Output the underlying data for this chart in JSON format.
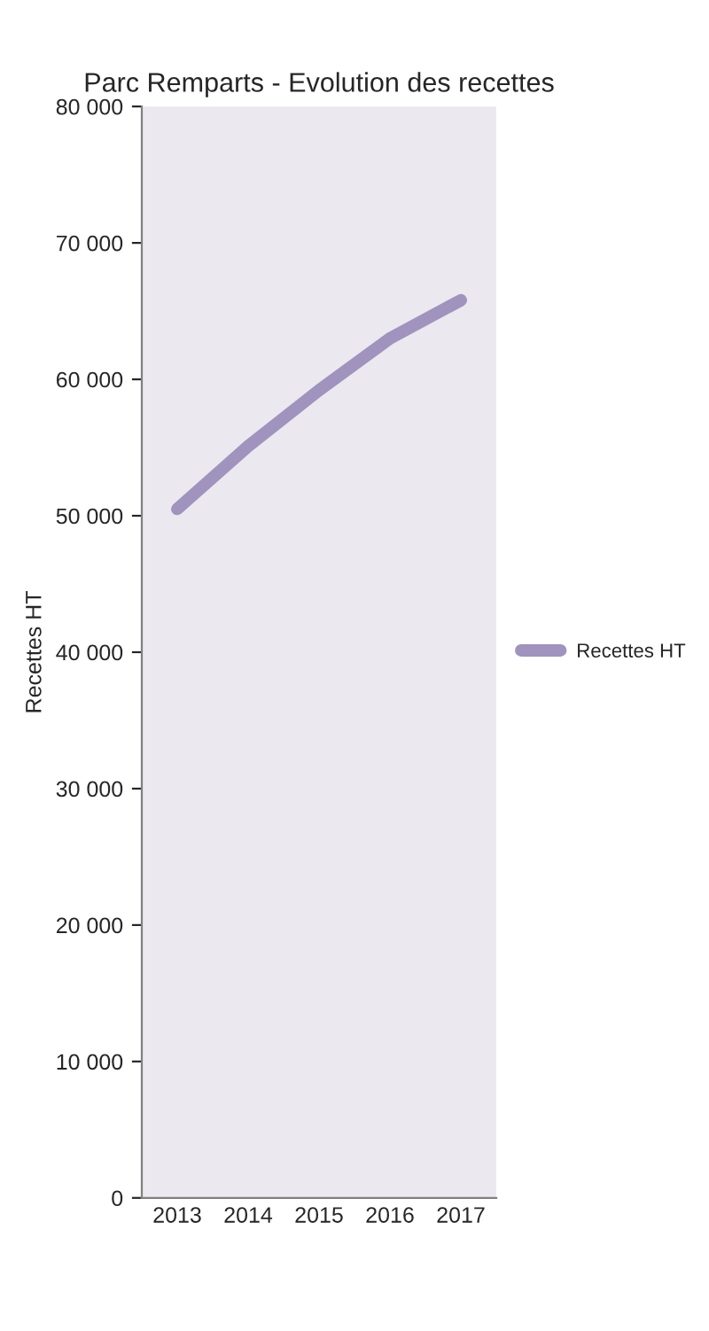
{
  "chart_data": {
    "type": "line",
    "title": "Parc Remparts - Evolution des recettes",
    "ylabel": "Recettes HT",
    "categories": [
      "2013",
      "2014",
      "2015",
      "2016",
      "2017"
    ],
    "series": [
      {
        "name": "Recettes HT",
        "color": "#a093bd",
        "values": [
          50500,
          55100,
          59200,
          63000,
          65800
        ]
      }
    ],
    "ylim": [
      0,
      80000
    ],
    "yticks": [
      0,
      {
        "value": 10000,
        "label": "10 000"
      },
      {
        "value": 20000,
        "label": "20 000"
      },
      {
        "value": 30000,
        "label": "30 000"
      },
      {
        "value": 40000,
        "label": "40 000"
      },
      {
        "value": 50000,
        "label": "50 000"
      },
      {
        "value": 60000,
        "label": "60 000"
      },
      {
        "value": 70000,
        "label": "70 000"
      },
      {
        "value": 80000,
        "label": "80 000"
      }
    ],
    "grid": false,
    "legend": "right",
    "marker": "none",
    "line_style": "solid"
  }
}
